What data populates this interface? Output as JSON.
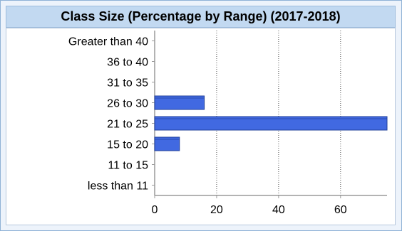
{
  "chart_data": {
    "type": "bar",
    "orientation": "horizontal",
    "title": "Class Size (Percentage by Range) (2017-2018)",
    "categories": [
      "Greater than 40",
      "36 to 40",
      "31 to 35",
      "26 to 30",
      "21 to 25",
      "15 to 20",
      "11 to 15",
      "less than 11"
    ],
    "values": [
      0,
      0,
      0,
      16,
      75,
      8,
      0,
      0
    ],
    "xlim": [
      0,
      75
    ],
    "xticks": [
      0,
      20,
      40,
      60
    ],
    "xticks_text": [
      "0",
      "20",
      "40",
      "60"
    ],
    "grid": "vertical-dotted",
    "colors": {
      "bar": "#4169e1",
      "bar_edge": "#1f3f9a",
      "axis": "#9a9a9a",
      "grid": "#555555",
      "background": "#f5f6d2",
      "title_bar": "#c2d9f1"
    }
  }
}
